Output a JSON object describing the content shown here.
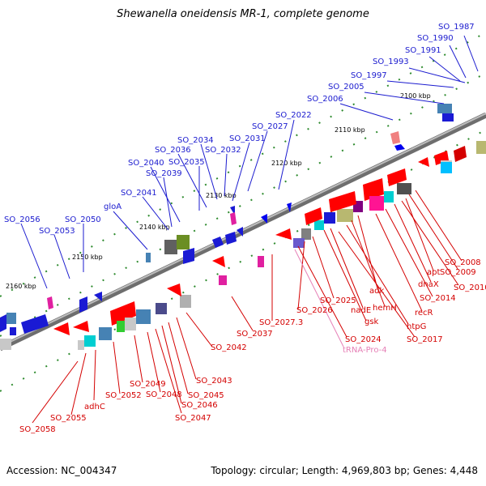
{
  "title": "Shewanella oneidensis MR-1, complete genome",
  "footer": {
    "accession": "Accession: NC_004347",
    "summary": "Topology: circular; Length: 4,969,803 bp; Genes: 4,448"
  },
  "ticks": [
    "2100 kbp",
    "2110 kbp",
    "2120 kbp",
    "2130 kbp",
    "2140 kbp",
    "2150 kbp",
    "2160 kbp"
  ],
  "forward_labels": [
    "SO_1987",
    "SO_1990",
    "SO_1991",
    "SO_1993",
    "SO_1997",
    "SO_2005",
    "SO_2006",
    "SO_2022",
    "SO_2027",
    "SO_2031",
    "SO_2032",
    "SO_2034",
    "SO_2036",
    "SO_2035",
    "SO_2040",
    "SO_2039",
    "SO_2041",
    "gloA",
    "SO_2050",
    "SO_2056",
    "SO_2053"
  ],
  "reverse_labels": [
    "SO_2008",
    "SO_2009",
    "apt",
    "SO_2010",
    "dnaX",
    "SO_2014",
    "recR",
    "adk",
    "hemH",
    "htpG",
    "SO_2017",
    "nadE",
    "gsk",
    "SO_2025",
    "SO_2026",
    "SO_2024",
    "tRNA-Pro-4",
    "SO_2027.3",
    "SO_2037",
    "SO_2042",
    "SO_2043",
    "SO_2045",
    "SO_2046",
    "SO_2047",
    "SO_2048",
    "SO_2049",
    "SO_2052",
    "adhC",
    "SO_2055",
    "SO_2058"
  ],
  "colors": {
    "forward_label": "#1b1bcf",
    "reverse_label": "#d40000",
    "trna_label": "#e67fb6",
    "backbone": "#888888"
  }
}
